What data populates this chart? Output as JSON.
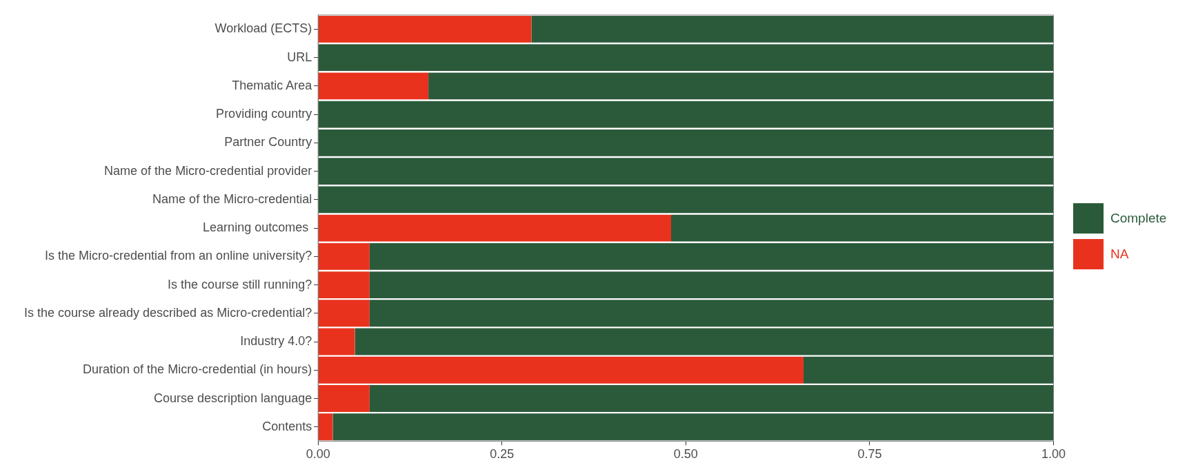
{
  "chart_data": {
    "type": "bar",
    "orientation": "horizontal",
    "stacked": true,
    "categories": [
      "Workload (ECTS)",
      "URL",
      "Thematic Area",
      "Providing country",
      "Partner Country",
      "Name of the Micro-credential provider",
      "Name of the Micro-credential",
      "Learning outcomes ",
      "Is the Micro-credential from an online university?",
      "Is the course still running?",
      "Is the course already described as Micro-credential?",
      "Industry 4.0?",
      "Duration of the Micro-credential (in hours)",
      "Course description language",
      "Contents"
    ],
    "series": [
      {
        "name": "NA",
        "color": "#e8321d",
        "values": [
          0.29,
          0,
          0.15,
          0,
          0,
          0,
          0,
          0.48,
          0.07,
          0.07,
          0.07,
          0.05,
          0.66,
          0.07,
          0.02
        ]
      },
      {
        "name": "Complete",
        "color": "#2b5a3a",
        "values": [
          0.71,
          1,
          0.85,
          1,
          1,
          1,
          1,
          0.52,
          0.93,
          0.93,
          0.93,
          0.95,
          0.34,
          0.93,
          0.98
        ]
      }
    ],
    "xlim": [
      0,
      1
    ],
    "xticks": [
      {
        "value": 0,
        "label": "0.00"
      },
      {
        "value": 0.25,
        "label": "0.25"
      },
      {
        "value": 0.5,
        "label": "0.50"
      },
      {
        "value": 0.75,
        "label": "0.75"
      },
      {
        "value": 1,
        "label": "1.00"
      }
    ],
    "grid": true,
    "legend": "right"
  }
}
